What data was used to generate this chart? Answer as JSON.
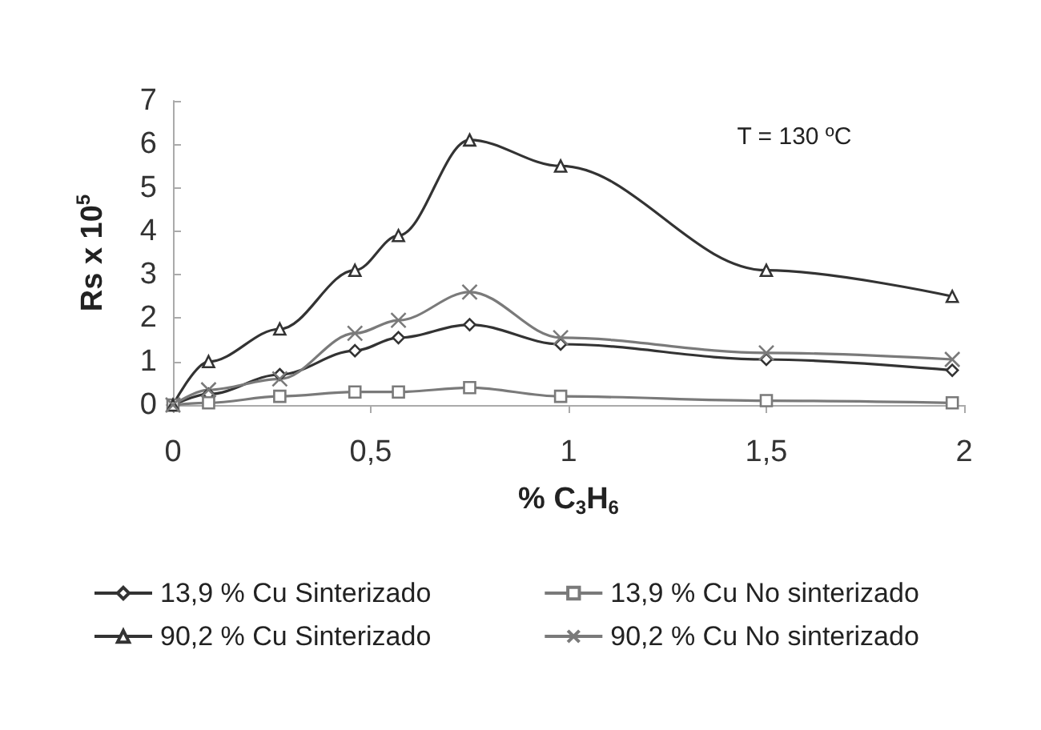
{
  "chart_data": {
    "type": "line",
    "xlabel": "% C$_{3}$H$_{6}$",
    "ylabel": "Rs x 10$^{5}$",
    "annotations": [
      "T = 130 ºC"
    ],
    "x": [
      0,
      0.09,
      0.27,
      0.46,
      0.57,
      0.75,
      0.98,
      1.5,
      1.97
    ],
    "series": [
      {
        "name": "13,9 % Cu Sinterizado",
        "color": "#333333",
        "marker": "diamond",
        "values": [
          0,
          0.25,
          0.7,
          1.25,
          1.55,
          1.85,
          1.4,
          1.05,
          0.8
        ]
      },
      {
        "name": "13,9 % Cu No sinterizado",
        "color": "#7a7a7a",
        "marker": "square",
        "values": [
          0,
          0.05,
          0.2,
          0.3,
          0.3,
          0.4,
          0.2,
          0.1,
          0.05
        ]
      },
      {
        "name": "90,2 % Cu Sinterizado",
        "color": "#333333",
        "marker": "triangle",
        "values": [
          0,
          1.0,
          1.75,
          3.1,
          3.9,
          6.1,
          5.5,
          3.1,
          2.5
        ]
      },
      {
        "name": "90,2 % Cu No sinterizado",
        "color": "#7a7a7a",
        "marker": "cross",
        "values": [
          0,
          0.35,
          0.6,
          1.65,
          1.95,
          2.6,
          1.55,
          1.2,
          1.05
        ]
      }
    ],
    "xlim": [
      0,
      2
    ],
    "xticks": [
      0,
      {
        "value": 0.5,
        "label": "0,5"
      },
      1,
      {
        "value": 1.5,
        "label": "1,5"
      },
      2
    ],
    "ylim": [
      0,
      7
    ],
    "yticks": [
      0,
      1,
      2,
      3,
      4,
      5,
      6,
      7
    ],
    "grid": false,
    "legend": "bottom",
    "line_style": "solid"
  }
}
